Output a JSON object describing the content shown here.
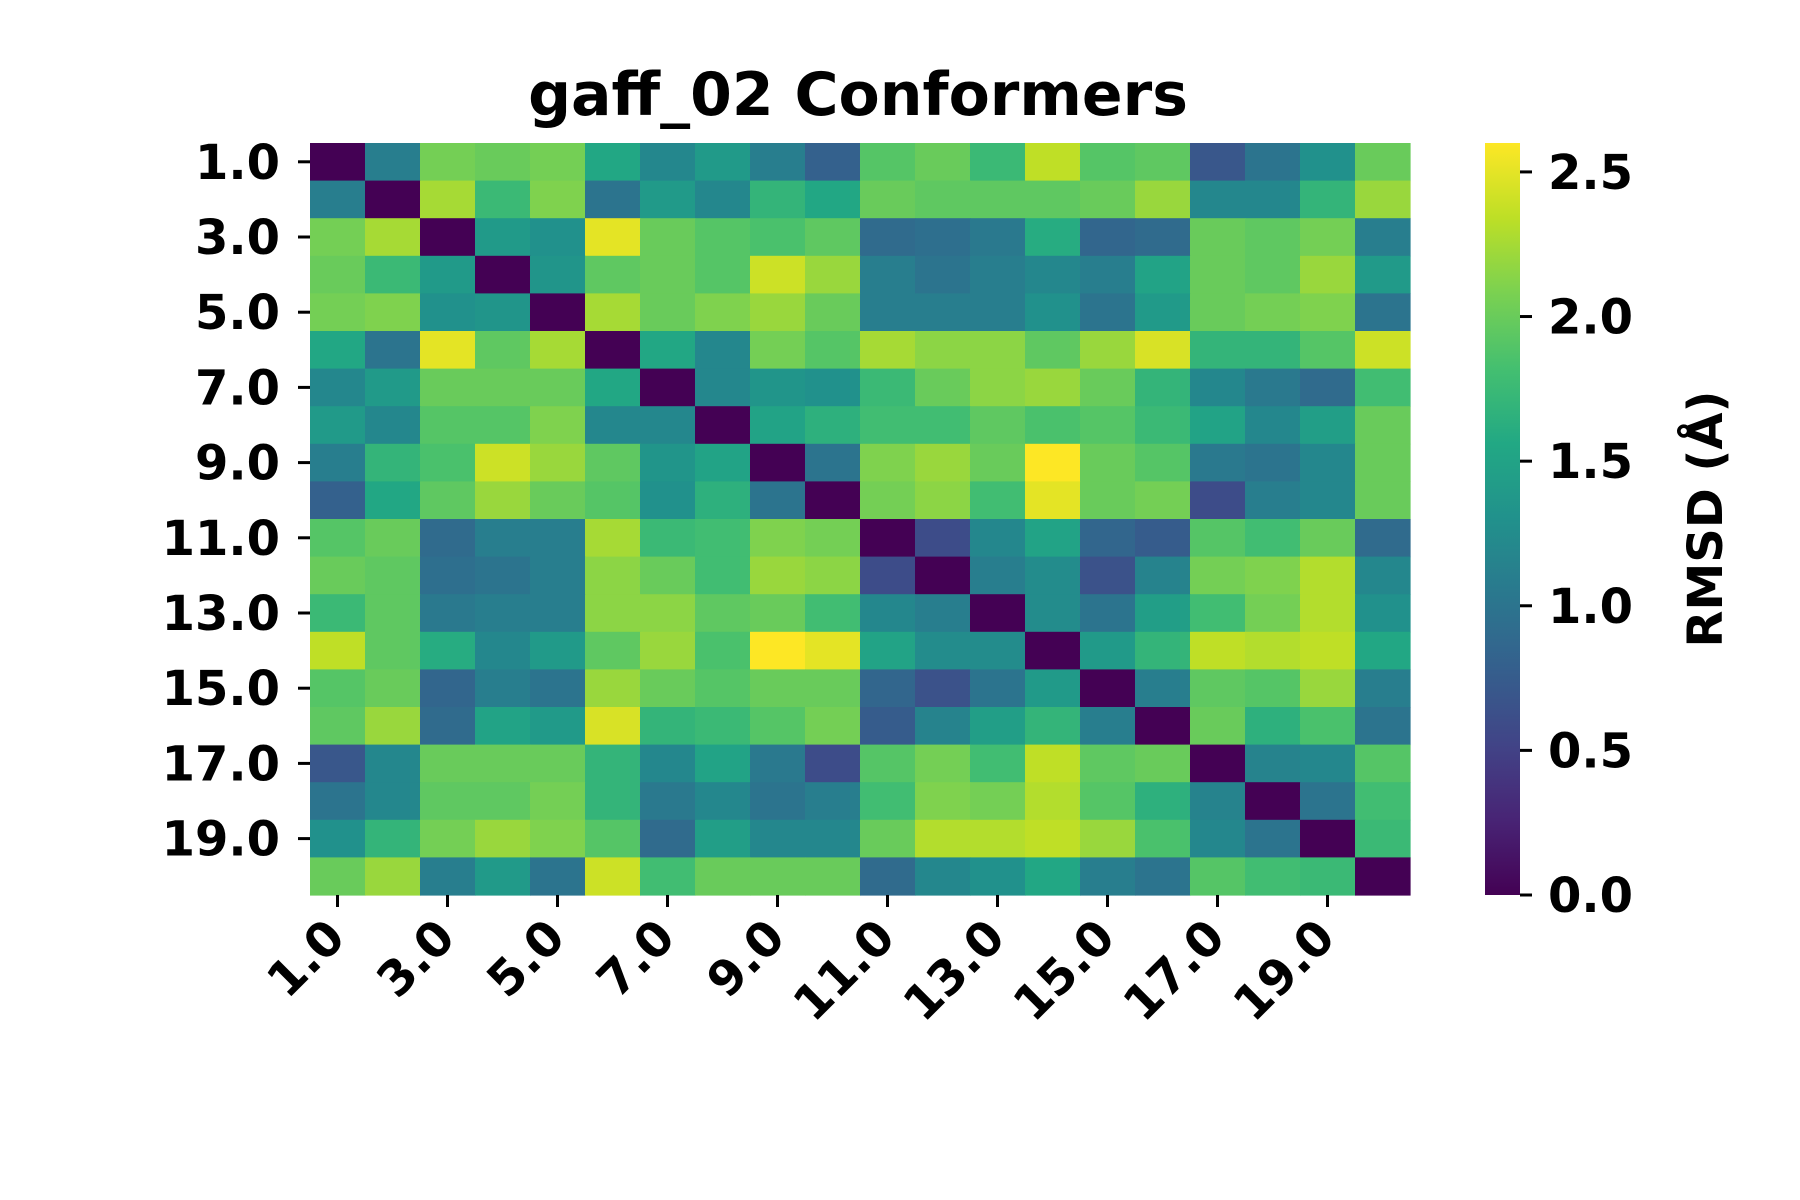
{
  "chart_data": {
    "type": "heatmap",
    "title": "gaff_02 Conformers",
    "colormap": "viridis",
    "row_tick_labels": [
      "1.0",
      "3.0",
      "5.0",
      "7.0",
      "9.0",
      "11.0",
      "13.0",
      "15.0",
      "17.0",
      "19.0"
    ],
    "col_tick_labels": [
      "1.0",
      "3.0",
      "5.0",
      "7.0",
      "9.0",
      "11.0",
      "13.0",
      "15.0",
      "17.0",
      "19.0"
    ],
    "colorbar": {
      "label": "RMSD (Å)",
      "range": [
        0.0,
        2.6
      ],
      "ticks": [
        "0.0",
        "0.5",
        "1.0",
        "1.5",
        "2.0",
        "2.5"
      ]
    },
    "matrix": [
      [
        0.0,
        1.1,
        2.05,
        2.0,
        2.05,
        1.55,
        1.2,
        1.4,
        1.1,
        0.8,
        1.9,
        2.0,
        1.75,
        2.35,
        1.9,
        1.95,
        0.7,
        1.0,
        1.3,
        2.0
      ],
      [
        1.1,
        0.0,
        2.25,
        1.75,
        2.1,
        1.0,
        1.4,
        1.2,
        1.7,
        1.55,
        2.0,
        1.95,
        1.95,
        1.95,
        2.0,
        2.2,
        1.2,
        1.2,
        1.7,
        2.2
      ],
      [
        2.05,
        2.25,
        0.0,
        1.4,
        1.3,
        2.5,
        2.0,
        1.9,
        1.85,
        1.95,
        0.9,
        0.95,
        1.05,
        1.6,
        0.85,
        0.9,
        2.0,
        1.95,
        2.05,
        1.1
      ],
      [
        2.0,
        1.75,
        1.4,
        0.0,
        1.35,
        1.95,
        2.0,
        1.9,
        2.4,
        2.2,
        1.1,
        1.0,
        1.1,
        1.2,
        1.1,
        1.5,
        2.0,
        1.95,
        2.2,
        1.4
      ],
      [
        2.05,
        2.1,
        1.3,
        1.35,
        0.0,
        2.25,
        2.0,
        2.1,
        2.2,
        2.0,
        1.1,
        1.1,
        1.1,
        1.3,
        1.0,
        1.4,
        2.0,
        2.05,
        2.1,
        1.0
      ],
      [
        1.55,
        1.0,
        2.5,
        1.95,
        2.25,
        0.0,
        1.55,
        1.2,
        2.05,
        1.9,
        2.25,
        2.15,
        2.15,
        1.95,
        2.2,
        2.45,
        1.7,
        1.7,
        1.9,
        2.4
      ],
      [
        1.2,
        1.4,
        2.0,
        2.0,
        2.0,
        1.55,
        0.0,
        1.2,
        1.35,
        1.3,
        1.75,
        2.0,
        2.15,
        2.2,
        2.0,
        1.7,
        1.2,
        1.05,
        0.9,
        1.8
      ],
      [
        1.4,
        1.2,
        1.9,
        1.9,
        2.1,
        1.2,
        1.2,
        0.0,
        1.5,
        1.65,
        1.8,
        1.8,
        1.95,
        1.85,
        1.9,
        1.75,
        1.5,
        1.2,
        1.45,
        2.0
      ],
      [
        1.1,
        1.7,
        1.85,
        2.4,
        2.2,
        1.95,
        1.35,
        1.5,
        0.0,
        1.0,
        2.1,
        2.2,
        2.0,
        2.6,
        2.0,
        1.9,
        1.05,
        1.0,
        1.2,
        2.0
      ],
      [
        0.8,
        1.55,
        1.95,
        2.2,
        2.0,
        1.9,
        1.3,
        1.65,
        1.0,
        0.0,
        2.05,
        2.15,
        1.8,
        2.5,
        2.0,
        2.05,
        0.6,
        1.1,
        1.2,
        2.0
      ],
      [
        1.9,
        2.0,
        0.9,
        1.1,
        1.1,
        2.25,
        1.75,
        1.8,
        2.1,
        2.05,
        0.0,
        0.6,
        1.2,
        1.5,
        0.85,
        0.75,
        1.9,
        1.8,
        2.0,
        0.9
      ],
      [
        2.0,
        1.95,
        0.95,
        1.0,
        1.1,
        2.15,
        2.0,
        1.8,
        2.2,
        2.15,
        0.6,
        0.0,
        1.1,
        1.25,
        0.65,
        1.15,
        2.05,
        2.1,
        2.3,
        1.2
      ],
      [
        1.75,
        1.95,
        1.05,
        1.1,
        1.1,
        2.15,
        2.15,
        1.95,
        2.0,
        1.8,
        1.2,
        1.1,
        0.0,
        1.25,
        1.0,
        1.45,
        1.8,
        2.05,
        2.3,
        1.3
      ],
      [
        2.35,
        1.95,
        1.6,
        1.2,
        1.4,
        1.95,
        2.2,
        1.85,
        2.6,
        2.5,
        1.5,
        1.25,
        1.25,
        0.0,
        1.4,
        1.7,
        2.35,
        2.3,
        2.35,
        1.55
      ],
      [
        1.9,
        2.0,
        0.85,
        1.1,
        1.0,
        2.2,
        2.0,
        1.9,
        2.0,
        2.0,
        0.85,
        0.65,
        1.0,
        1.4,
        0.0,
        1.1,
        1.95,
        1.9,
        2.2,
        1.1
      ],
      [
        1.95,
        2.2,
        0.9,
        1.5,
        1.4,
        2.45,
        1.7,
        1.75,
        1.9,
        2.05,
        0.75,
        1.15,
        1.45,
        1.7,
        1.1,
        0.0,
        2.0,
        1.65,
        1.85,
        1.0
      ],
      [
        0.7,
        1.2,
        2.0,
        2.0,
        2.0,
        1.7,
        1.2,
        1.5,
        1.05,
        0.6,
        1.9,
        2.05,
        1.8,
        2.35,
        1.95,
        2.0,
        0.0,
        1.15,
        1.2,
        1.9
      ],
      [
        1.0,
        1.2,
        1.95,
        1.95,
        2.05,
        1.7,
        1.05,
        1.2,
        1.0,
        1.1,
        1.8,
        2.1,
        2.05,
        2.3,
        1.9,
        1.65,
        1.15,
        0.0,
        1.0,
        1.8
      ],
      [
        1.3,
        1.7,
        2.05,
        2.2,
        2.1,
        1.9,
        0.9,
        1.45,
        1.2,
        1.2,
        2.0,
        2.3,
        2.3,
        2.35,
        2.2,
        1.85,
        1.2,
        1.0,
        0.0,
        1.75
      ],
      [
        2.0,
        2.2,
        1.1,
        1.4,
        1.0,
        2.4,
        1.8,
        2.0,
        2.0,
        2.0,
        0.9,
        1.2,
        1.3,
        1.55,
        1.1,
        1.0,
        1.9,
        1.8,
        1.75,
        0.0
      ]
    ]
  }
}
